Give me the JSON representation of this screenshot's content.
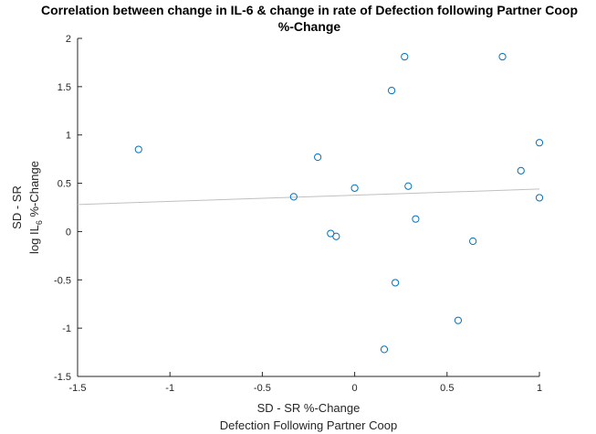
{
  "chart_data": {
    "type": "scatter",
    "title": [
      "Correlation between change in IL-6 & change in rate of Defection following Partner Coop",
      "%-Change"
    ],
    "xlabel": [
      "SD - SR %-Change",
      "Defection Following Partner Coop"
    ],
    "ylabel": {
      "line1": "SD - SR",
      "line2_pre": "log IL",
      "line2_sub": "6",
      "line2_post": " %-Change"
    },
    "xlim": [
      -1.5,
      1
    ],
    "ylim": [
      -1.5,
      2
    ],
    "xticks": [
      -1.5,
      -1,
      -0.5,
      0,
      0.5,
      1
    ],
    "yticks": [
      -1.5,
      -1,
      -0.5,
      0,
      0.5,
      1,
      1.5,
      2
    ],
    "xtick_labels": [
      "-1.5",
      "-1",
      "-0.5",
      "0",
      "0.5",
      "1"
    ],
    "ytick_labels": [
      "-1.5",
      "-1",
      "-0.5",
      "0",
      "0.5",
      "1",
      "1.5",
      "2"
    ],
    "grid": false,
    "points": [
      {
        "x": -1.17,
        "y": 0.85
      },
      {
        "x": -0.33,
        "y": 0.36
      },
      {
        "x": -0.2,
        "y": 0.77
      },
      {
        "x": -0.13,
        "y": -0.02
      },
      {
        "x": -0.1,
        "y": -0.05
      },
      {
        "x": 0.0,
        "y": 0.45
      },
      {
        "x": 0.16,
        "y": -1.22
      },
      {
        "x": 0.2,
        "y": 1.46
      },
      {
        "x": 0.22,
        "y": -0.53
      },
      {
        "x": 0.27,
        "y": 1.81
      },
      {
        "x": 0.29,
        "y": 0.47
      },
      {
        "x": 0.33,
        "y": 0.13
      },
      {
        "x": 0.56,
        "y": -0.92
      },
      {
        "x": 0.64,
        "y": -0.1
      },
      {
        "x": 0.8,
        "y": 1.81
      },
      {
        "x": 0.9,
        "y": 0.63
      },
      {
        "x": 1.0,
        "y": 0.92
      },
      {
        "x": 1.0,
        "y": 0.35
      }
    ],
    "trendline": {
      "x": [
        -1.5,
        1
      ],
      "y": [
        0.28,
        0.44
      ]
    },
    "colors": {
      "marker": "#0072bd",
      "trendline": "#c0c0c0",
      "axis": "#262626"
    }
  }
}
